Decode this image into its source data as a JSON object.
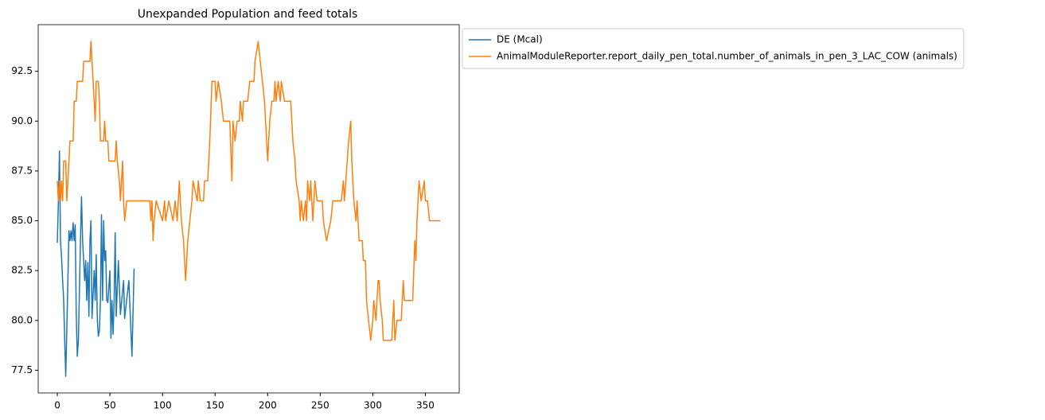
{
  "chart_data": {
    "type": "line",
    "title": "Unexpanded Population and feed totals",
    "xlim": [
      -18.2,
      382.2
    ],
    "xticks": [
      0,
      50,
      100,
      150,
      200,
      250,
      300,
      350
    ],
    "ylim": [
      76.36,
      94.84
    ],
    "yticks": [
      77.5,
      {
        "value": 80,
        "label": "80.0"
      },
      82.5,
      {
        "value": 85,
        "label": "85.0"
      },
      87.5,
      {
        "value": 90,
        "label": "90.0"
      },
      92.5
    ],
    "legend": "outside-right",
    "series": [
      {
        "name": "DE (Mcal)",
        "color": "#1f77b4",
        "x": [
          0,
          1,
          2,
          3,
          4,
          5,
          6,
          7,
          8,
          10,
          11,
          12,
          13,
          14,
          15,
          16,
          17,
          18,
          19,
          20,
          22,
          23,
          24,
          25,
          26,
          27,
          28,
          29,
          30,
          31,
          32,
          33,
          35,
          36,
          37,
          38,
          39,
          40,
          41,
          42,
          43,
          44,
          45,
          46,
          47,
          48,
          50,
          51,
          52,
          53,
          54,
          55,
          56,
          58,
          60,
          63,
          64,
          68,
          71,
          73
        ],
        "values": [
          83.9,
          86,
          88.5,
          84,
          83.2,
          82,
          81,
          79,
          77.2,
          82,
          84.5,
          84,
          84.5,
          84,
          84.9,
          84,
          84.8,
          80.3,
          78.2,
          79,
          84,
          86.2,
          84,
          83,
          82,
          83,
          81,
          82.9,
          80.2,
          84,
          85,
          80.1,
          82.5,
          81,
          83.3,
          80,
          79.2,
          79.5,
          81,
          85.3,
          81,
          85,
          83,
          83.5,
          81,
          80.9,
          82.5,
          79.1,
          81,
          79.3,
          81,
          84.4,
          80.2,
          83,
          80.3,
          82,
          80.1,
          82,
          78.2,
          82.6
        ]
      },
      {
        "name": "AnimalModuleReporter.report_daily_pen_total.number_of_animals_in_pen_3_LAC_COW (animals)",
        "color": "#ff7f0e",
        "x": [
          0,
          1,
          2,
          3,
          4,
          5,
          6,
          8,
          9,
          10,
          12,
          15,
          16,
          18,
          19,
          24,
          25,
          31,
          32,
          33,
          34,
          36,
          37,
          39,
          40,
          41,
          44,
          45,
          46,
          48,
          49,
          55,
          56,
          57,
          59,
          60,
          62,
          63,
          64,
          66,
          88,
          89,
          90,
          91,
          92,
          94,
          100,
          102,
          103,
          106,
          110,
          112,
          114,
          116,
          118,
          120,
          121,
          122,
          124,
          126,
          128,
          129,
          133,
          134,
          136,
          139,
          140,
          143,
          145,
          147,
          150,
          151,
          153,
          156,
          158,
          162,
          164,
          166,
          167,
          169,
          171,
          173,
          174,
          176,
          177,
          181,
          183,
          187,
          188,
          191,
          193,
          195,
          197,
          199,
          200,
          202,
          204,
          206,
          207,
          208,
          210,
          212,
          213,
          216,
          222,
          224,
          226,
          227,
          230,
          231,
          232,
          234,
          236,
          237,
          238,
          240,
          241,
          243,
          245,
          247,
          252,
          253,
          256,
          260,
          262,
          270,
          272,
          273,
          277,
          279,
          280,
          282,
          284,
          285,
          287,
          290,
          291,
          293,
          294,
          296,
          298,
          300,
          301,
          303,
          305,
          306,
          307,
          309,
          310,
          318,
          320,
          321,
          323,
          327,
          329,
          330,
          332,
          333,
          338,
          340,
          341,
          342,
          344,
          346,
          349,
          350,
          352,
          354,
          364
        ],
        "values": [
          87,
          86,
          87,
          86,
          87,
          86,
          88,
          88,
          86,
          87,
          89,
          89,
          91,
          91,
          92,
          92,
          93,
          93,
          94,
          93,
          92,
          90,
          92,
          92,
          91,
          89,
          89,
          90,
          89,
          89,
          88,
          88,
          89,
          88,
          87,
          86,
          88,
          86,
          85,
          86,
          86,
          85,
          86,
          84,
          85,
          86,
          85,
          86,
          85,
          86,
          85,
          86,
          85,
          87,
          85,
          84,
          83,
          82,
          84,
          85,
          86,
          87,
          86,
          87,
          86,
          86,
          87,
          87,
          89,
          92,
          92,
          91,
          92,
          91,
          90,
          90,
          90,
          87,
          90,
          89,
          90,
          90,
          91,
          90,
          91,
          91,
          92,
          92,
          93,
          94,
          93,
          92,
          91,
          89,
          88,
          90,
          91,
          91,
          92,
          91,
          92,
          91,
          92,
          91,
          91,
          89,
          88,
          87,
          86,
          85,
          86,
          85,
          86,
          85,
          87,
          86,
          87,
          85,
          87,
          86,
          86,
          85,
          84,
          85,
          86,
          86,
          87,
          86,
          89,
          90,
          88,
          86,
          85,
          86,
          84,
          84,
          83,
          83,
          81,
          80,
          79,
          80,
          81,
          80,
          82,
          82,
          81,
          80,
          79,
          79,
          81,
          79,
          80,
          80,
          82,
          81,
          81,
          81,
          81,
          84,
          83,
          85,
          87,
          86,
          87,
          86,
          86,
          85,
          85
        ]
      }
    ]
  }
}
